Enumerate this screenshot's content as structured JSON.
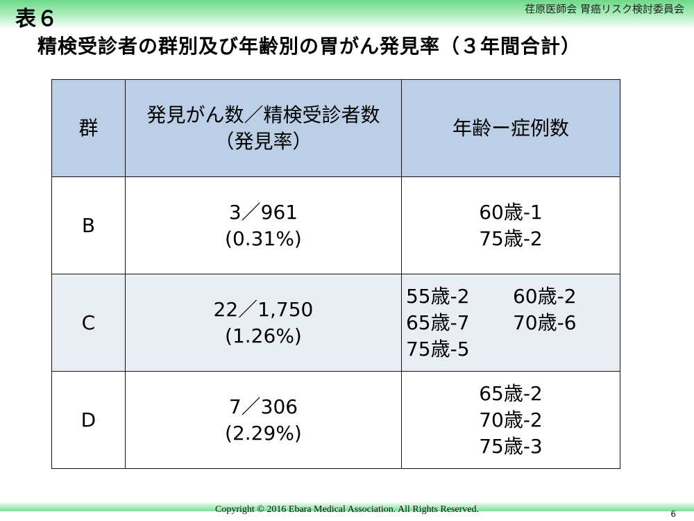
{
  "header": {
    "slide_label": "表６",
    "org_name": "荏原医師会 胃癌リスク検討委員会"
  },
  "title": "精検受診者の群別及び年齢別の胃がん発見率（３年間合計）",
  "table": {
    "headers": {
      "group": "群",
      "rate_line1": "発見がん数／精検受診者数",
      "rate_line2": "（発見率）",
      "age": "年齢ー症例数"
    },
    "rows": [
      {
        "group": "B",
        "count": "3／961",
        "rate": "(0.31%)",
        "ages": [
          "60歳-1",
          "75歳-2"
        ]
      },
      {
        "group": "C",
        "count": "22／1,750",
        "rate": "(1.26%)",
        "ages": [
          "55歳-2",
          "60歳-2",
          "65歳-7",
          "70歳-6",
          "75歳-5"
        ]
      },
      {
        "group": "D",
        "count": "7／306",
        "rate": "(2.29%)",
        "ages": [
          "65歳-2",
          "70歳-2",
          "75歳-3"
        ]
      }
    ]
  },
  "footer": {
    "copyright": "Copyright ©  2016 Ebara Medical Association. All Rights Reserved.",
    "page_number": "6"
  }
}
